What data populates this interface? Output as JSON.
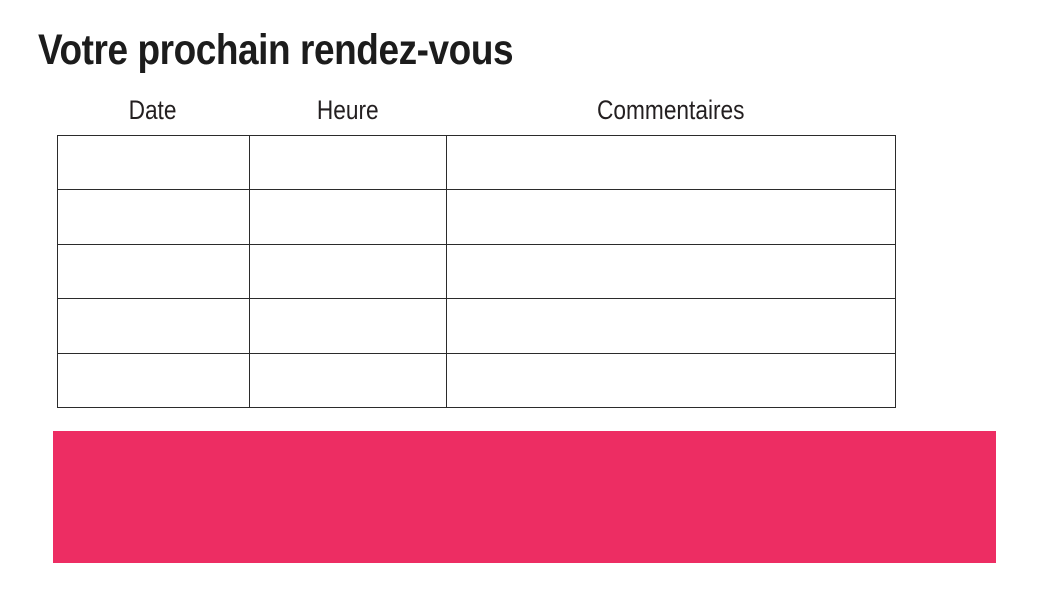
{
  "page": {
    "title": "Votre prochain rendez-vous"
  },
  "table": {
    "columns": [
      {
        "key": "date",
        "label": "Date"
      },
      {
        "key": "heure",
        "label": "Heure"
      },
      {
        "key": "commentaires",
        "label": "Commentaires"
      }
    ],
    "rows": [
      {
        "date": "",
        "heure": "",
        "commentaires": ""
      },
      {
        "date": "",
        "heure": "",
        "commentaires": ""
      },
      {
        "date": "",
        "heure": "",
        "commentaires": ""
      },
      {
        "date": "",
        "heure": "",
        "commentaires": ""
      },
      {
        "date": "",
        "heure": "",
        "commentaires": ""
      }
    ]
  },
  "colors": {
    "banner": "#ED2D63",
    "table_border": "#2B2B2B",
    "text": "#1C1C1C"
  }
}
